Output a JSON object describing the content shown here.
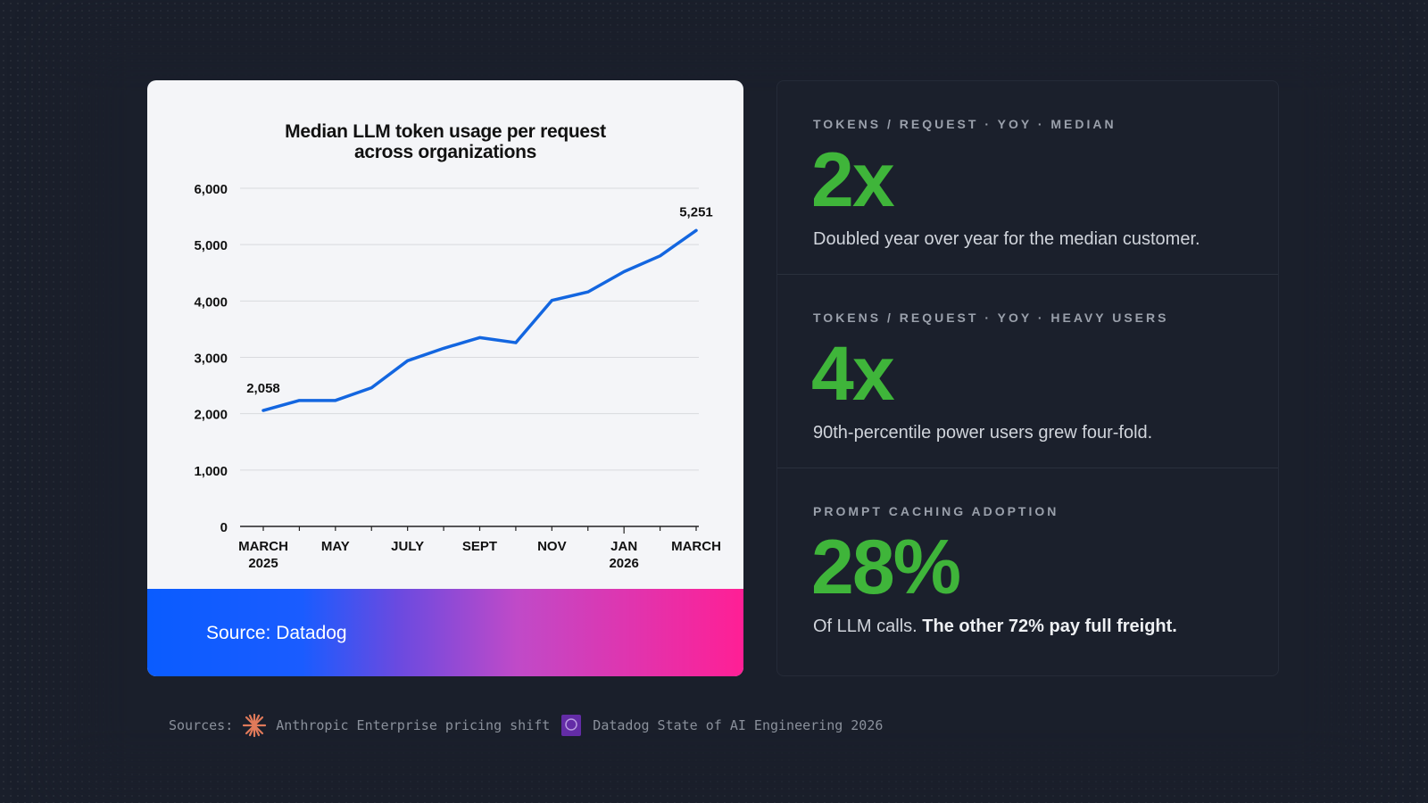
{
  "chart_data": {
    "type": "line",
    "title": "Median LLM token usage per request across organizations",
    "x": [
      "Mar 2025",
      "Apr 2025",
      "May 2025",
      "Jun 2025",
      "Jul 2025",
      "Aug 2025",
      "Sep 2025",
      "Oct 2025",
      "Nov 2025",
      "Dec 2025",
      "Jan 2026",
      "Feb 2026",
      "Mar 2026"
    ],
    "x_tick_labels": [
      [
        "MARCH",
        "2025"
      ],
      [
        "MAY",
        ""
      ],
      [
        "JULY",
        ""
      ],
      [
        "SEPT",
        ""
      ],
      [
        "NOV",
        ""
      ],
      [
        "JAN",
        "2026"
      ],
      [
        "MARCH",
        ""
      ]
    ],
    "values": [
      2058,
      2235,
      2235,
      2460,
      2940,
      3160,
      3350,
      3260,
      4010,
      4160,
      4520,
      4800,
      5251
    ],
    "ylim": [
      0,
      6000
    ],
    "y_ticks": [
      "0",
      "1,000",
      "2,000",
      "3,000",
      "4,000",
      "5,000",
      "6,000"
    ],
    "data_labels": {
      "first": "2,058",
      "last": "5,251"
    },
    "grid": true,
    "line_color": "#1366e0"
  },
  "card": {
    "title_line1": "Median LLM token usage per request",
    "title_line2": "across organizations",
    "footer": "Source: Datadog"
  },
  "stats": [
    {
      "label": "TOKENS / REQUEST · YOY · MEDIAN",
      "value": "2x",
      "desc": "Doubled year over year for the median customer.",
      "desc_bold": ""
    },
    {
      "label": "TOKENS / REQUEST · YOY · HEAVY USERS",
      "value": "4x",
      "desc": "90th-percentile power users grew four-fold.",
      "desc_bold": ""
    },
    {
      "label": "PROMPT CACHING ADOPTION",
      "value": "28%",
      "desc": "Of LLM calls. ",
      "desc_bold": "The other 72% pay full freight."
    }
  ],
  "sources": {
    "label": "Sources:",
    "items": [
      "Anthropic Enterprise pricing shift",
      "Datadog State of AI Engineering 2026"
    ]
  },
  "colors": {
    "accent_green": "#3fb53a",
    "background": "#1a1f2b"
  }
}
